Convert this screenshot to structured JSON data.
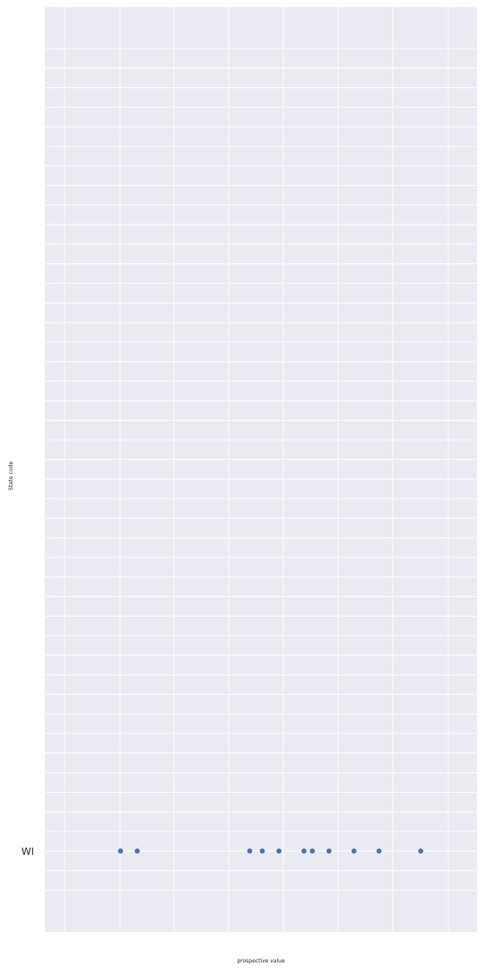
{
  "chart_data": {
    "type": "scatter",
    "title": "",
    "xlabel": "prospective value",
    "ylabel": "State code",
    "categories": [
      "WI"
    ],
    "x_ticks": [],
    "grid": true,
    "points": [
      {
        "category": "WI",
        "x": 0.16
      },
      {
        "category": "WI",
        "x": 0.2
      },
      {
        "category": "WI",
        "x": 0.47
      },
      {
        "category": "WI",
        "x": 0.5
      },
      {
        "category": "WI",
        "x": 0.54
      },
      {
        "category": "WI",
        "x": 0.6
      },
      {
        "category": "WI",
        "x": 0.62
      },
      {
        "category": "WI",
        "x": 0.66
      },
      {
        "category": "WI",
        "x": 0.72
      },
      {
        "category": "WI",
        "x": 0.78
      },
      {
        "category": "WI",
        "x": 0.88
      }
    ],
    "colors": {
      "background": "#eaeaf2",
      "grid": "#ffffff",
      "point": "#4c72b0",
      "point_edge": "#ffffff"
    }
  }
}
